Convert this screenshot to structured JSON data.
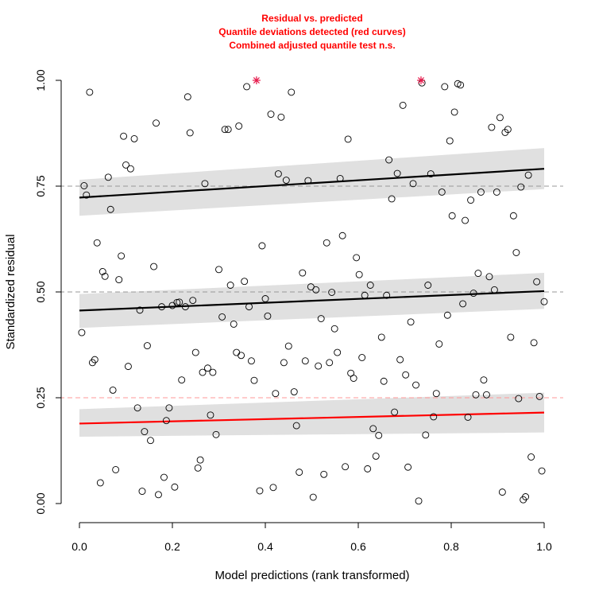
{
  "chart_data": {
    "type": "scatter",
    "title_lines": [
      "Residual vs. predicted",
      "Quantile deviations detected (red curves)",
      "Combined adjusted quantile test n.s."
    ],
    "xlabel": "Model predictions (rank transformed)",
    "ylabel": "Standardized residual",
    "xlim": [
      0,
      1
    ],
    "ylim": [
      0,
      1
    ],
    "x_ticks": [
      0.0,
      0.2,
      0.4,
      0.6,
      0.8,
      1.0
    ],
    "x_tick_labels": [
      "0.0",
      "0.2",
      "0.4",
      "0.6",
      "0.8",
      "1.0"
    ],
    "y_ticks": [
      0.0,
      0.25,
      0.5,
      0.75,
      1.0
    ],
    "y_tick_labels": [
      "0.00",
      "0.25",
      "0.50",
      "0.75",
      "1.00"
    ],
    "reference_lines": [
      {
        "y": 0.25,
        "color": "#ff9999"
      },
      {
        "y": 0.5,
        "color": "#999999"
      },
      {
        "y": 0.75,
        "color": "#999999"
      }
    ],
    "quantile_fits": [
      {
        "quantile": 0.25,
        "color": "#ff0000",
        "y0": 0.189,
        "y1": 0.215,
        "band_lower": [
          0.158,
          0.168
        ],
        "band_upper": [
          0.223,
          0.262
        ]
      },
      {
        "quantile": 0.5,
        "color": "#000000",
        "y0": 0.456,
        "y1": 0.502,
        "band_lower": [
          0.415,
          0.46
        ],
        "band_upper": [
          0.495,
          0.545
        ]
      },
      {
        "quantile": 0.75,
        "color": "#000000",
        "y0": 0.723,
        "y1": 0.791,
        "band_lower": [
          0.68,
          0.743
        ],
        "band_upper": [
          0.765,
          0.84
        ]
      }
    ],
    "outliers": [
      [
        0.381,
        1.0
      ],
      [
        0.735,
        1.0
      ]
    ],
    "points": [
      [
        0.005,
        0.404
      ],
      [
        0.01,
        0.751
      ],
      [
        0.015,
        0.729
      ],
      [
        0.022,
        0.972
      ],
      [
        0.028,
        0.333
      ],
      [
        0.033,
        0.34
      ],
      [
        0.038,
        0.616
      ],
      [
        0.045,
        0.049
      ],
      [
        0.05,
        0.548
      ],
      [
        0.055,
        0.537
      ],
      [
        0.062,
        0.771
      ],
      [
        0.067,
        0.695
      ],
      [
        0.072,
        0.268
      ],
      [
        0.078,
        0.08
      ],
      [
        0.085,
        0.529
      ],
      [
        0.09,
        0.585
      ],
      [
        0.095,
        0.868
      ],
      [
        0.1,
        0.8
      ],
      [
        0.105,
        0.324
      ],
      [
        0.11,
        0.791
      ],
      [
        0.118,
        0.862
      ],
      [
        0.125,
        0.226
      ],
      [
        0.13,
        0.457
      ],
      [
        0.135,
        0.029
      ],
      [
        0.14,
        0.17
      ],
      [
        0.146,
        0.373
      ],
      [
        0.153,
        0.149
      ],
      [
        0.16,
        0.56
      ],
      [
        0.165,
        0.899
      ],
      [
        0.17,
        0.021
      ],
      [
        0.177,
        0.465
      ],
      [
        0.182,
        0.062
      ],
      [
        0.187,
        0.196
      ],
      [
        0.193,
        0.226
      ],
      [
        0.2,
        0.468
      ],
      [
        0.205,
        0.039
      ],
      [
        0.21,
        0.475
      ],
      [
        0.215,
        0.476
      ],
      [
        0.22,
        0.292
      ],
      [
        0.228,
        0.465
      ],
      [
        0.233,
        0.961
      ],
      [
        0.238,
        0.876
      ],
      [
        0.244,
        0.48
      ],
      [
        0.25,
        0.357
      ],
      [
        0.255,
        0.084
      ],
      [
        0.26,
        0.103
      ],
      [
        0.265,
        0.31
      ],
      [
        0.27,
        0.756
      ],
      [
        0.276,
        0.32
      ],
      [
        0.282,
        0.209
      ],
      [
        0.287,
        0.31
      ],
      [
        0.294,
        0.163
      ],
      [
        0.3,
        0.553
      ],
      [
        0.307,
        0.441
      ],
      [
        0.313,
        0.884
      ],
      [
        0.32,
        0.884
      ],
      [
        0.325,
        0.516
      ],
      [
        0.332,
        0.424
      ],
      [
        0.338,
        0.357
      ],
      [
        0.343,
        0.892
      ],
      [
        0.348,
        0.35
      ],
      [
        0.355,
        0.525
      ],
      [
        0.36,
        0.985
      ],
      [
        0.365,
        0.465
      ],
      [
        0.37,
        0.337
      ],
      [
        0.376,
        0.291
      ],
      [
        0.388,
        0.03
      ],
      [
        0.393,
        0.609
      ],
      [
        0.4,
        0.484
      ],
      [
        0.405,
        0.443
      ],
      [
        0.412,
        0.92
      ],
      [
        0.417,
        0.038
      ],
      [
        0.422,
        0.26
      ],
      [
        0.428,
        0.779
      ],
      [
        0.434,
        0.913
      ],
      [
        0.44,
        0.333
      ],
      [
        0.445,
        0.764
      ],
      [
        0.45,
        0.372
      ],
      [
        0.456,
        0.972
      ],
      [
        0.462,
        0.264
      ],
      [
        0.467,
        0.184
      ],
      [
        0.473,
        0.074
      ],
      [
        0.48,
        0.545
      ],
      [
        0.486,
        0.337
      ],
      [
        0.492,
        0.763
      ],
      [
        0.498,
        0.512
      ],
      [
        0.503,
        0.015
      ],
      [
        0.509,
        0.505
      ],
      [
        0.514,
        0.325
      ],
      [
        0.52,
        0.437
      ],
      [
        0.526,
        0.069
      ],
      [
        0.532,
        0.616
      ],
      [
        0.538,
        0.333
      ],
      [
        0.543,
        0.499
      ],
      [
        0.549,
        0.413
      ],
      [
        0.555,
        0.357
      ],
      [
        0.561,
        0.768
      ],
      [
        0.566,
        0.633
      ],
      [
        0.572,
        0.087
      ],
      [
        0.578,
        0.861
      ],
      [
        0.584,
        0.308
      ],
      [
        0.59,
        0.296
      ],
      [
        0.596,
        0.581
      ],
      [
        0.602,
        0.541
      ],
      [
        0.608,
        0.345
      ],
      [
        0.614,
        0.492
      ],
      [
        0.62,
        0.082
      ],
      [
        0.626,
        0.516
      ],
      [
        0.632,
        0.177
      ],
      [
        0.638,
        0.112
      ],
      [
        0.644,
        0.161
      ],
      [
        0.65,
        0.393
      ],
      [
        0.655,
        0.289
      ],
      [
        0.661,
        0.492
      ],
      [
        0.666,
        0.812
      ],
      [
        0.672,
        0.72
      ],
      [
        0.678,
        0.216
      ],
      [
        0.684,
        0.78
      ],
      [
        0.69,
        0.34
      ],
      [
        0.696,
        0.941
      ],
      [
        0.702,
        0.304
      ],
      [
        0.707,
        0.086
      ],
      [
        0.713,
        0.429
      ],
      [
        0.718,
        0.756
      ],
      [
        0.724,
        0.28
      ],
      [
        0.73,
        0.006
      ],
      [
        0.737,
        0.994
      ],
      [
        0.745,
        0.162
      ],
      [
        0.75,
        0.516
      ],
      [
        0.756,
        0.779
      ],
      [
        0.762,
        0.205
      ],
      [
        0.768,
        0.26
      ],
      [
        0.774,
        0.377
      ],
      [
        0.78,
        0.736
      ],
      [
        0.786,
        0.985
      ],
      [
        0.792,
        0.445
      ],
      [
        0.797,
        0.857
      ],
      [
        0.802,
        0.68
      ],
      [
        0.807,
        0.925
      ],
      [
        0.814,
        0.992
      ],
      [
        0.82,
        0.989
      ],
      [
        0.825,
        0.472
      ],
      [
        0.83,
        0.669
      ],
      [
        0.836,
        0.204
      ],
      [
        0.842,
        0.717
      ],
      [
        0.848,
        0.497
      ],
      [
        0.853,
        0.257
      ],
      [
        0.858,
        0.544
      ],
      [
        0.864,
        0.736
      ],
      [
        0.87,
        0.292
      ],
      [
        0.876,
        0.257
      ],
      [
        0.882,
        0.536
      ],
      [
        0.887,
        0.889
      ],
      [
        0.893,
        0.505
      ],
      [
        0.898,
        0.736
      ],
      [
        0.905,
        0.912
      ],
      [
        0.91,
        0.027
      ],
      [
        0.916,
        0.877
      ],
      [
        0.922,
        0.884
      ],
      [
        0.928,
        0.393
      ],
      [
        0.934,
        0.68
      ],
      [
        0.94,
        0.593
      ],
      [
        0.945,
        0.248
      ],
      [
        0.95,
        0.748
      ],
      [
        0.955,
        0.009
      ],
      [
        0.96,
        0.016
      ],
      [
        0.966,
        0.776
      ],
      [
        0.972,
        0.11
      ],
      [
        0.978,
        0.38
      ],
      [
        0.984,
        0.524
      ],
      [
        0.99,
        0.253
      ],
      [
        0.995,
        0.077
      ],
      [
        1.0,
        0.477
      ]
    ]
  }
}
